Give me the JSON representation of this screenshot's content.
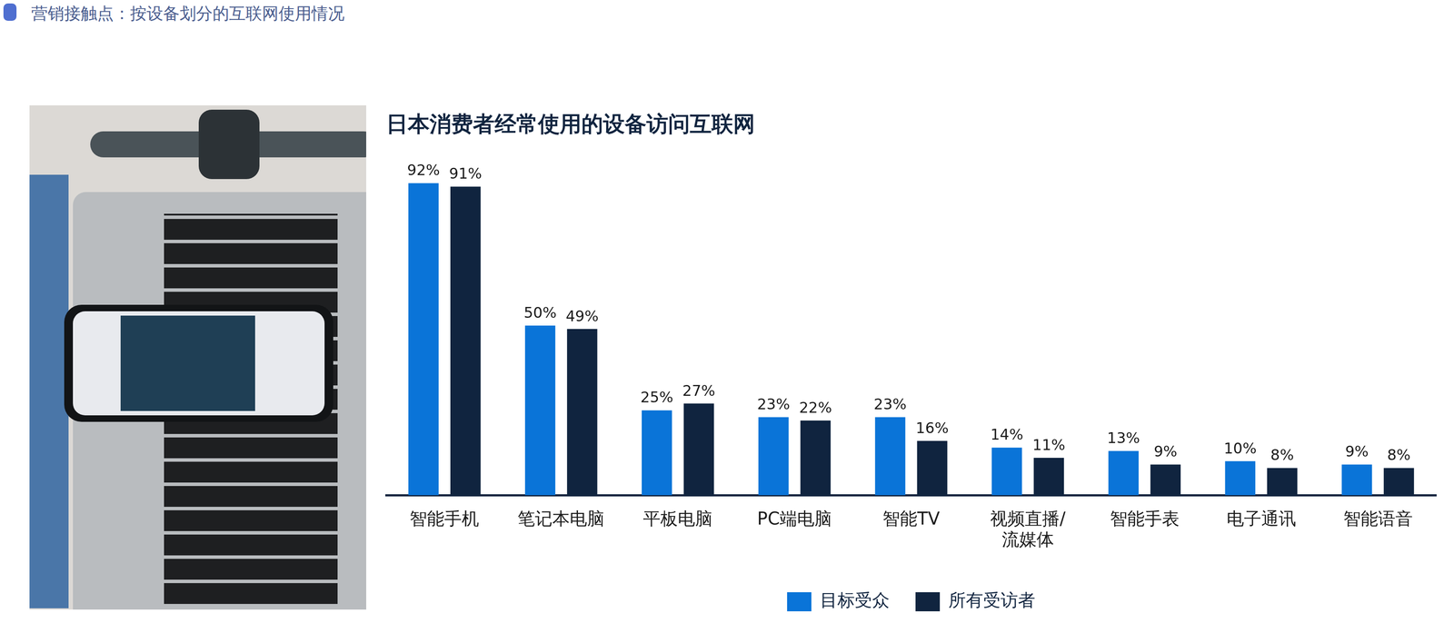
{
  "header": "营销接触点：按设备划分的互联网使用情况",
  "chart_data": {
    "type": "bar",
    "title": "日本消费者经常使用的设备访问互联网",
    "categories": [
      "智能手机",
      "笔记本电脑",
      "平板电脑",
      "PC端电脑",
      "智能TV",
      "视频直播/流媒体",
      "智能手表",
      "电子通讯",
      "智能语音"
    ],
    "series": [
      {
        "name": "目标受众",
        "color": "#0a74d8",
        "values": [
          92,
          50,
          25,
          23,
          23,
          14,
          13,
          10,
          9
        ],
        "value_labels": [
          "92%",
          "50%",
          "25%",
          "23%",
          "23%",
          "14%",
          "13%",
          "10%",
          "9%"
        ]
      },
      {
        "name": "所有受访者",
        "color": "#10243f",
        "values": [
          91,
          49,
          27,
          22,
          16,
          11,
          9,
          8,
          8
        ],
        "value_labels": [
          "91%",
          "49%",
          "27%",
          "22%",
          "16%",
          "11%",
          "9%",
          "8%",
          "8%"
        ]
      }
    ],
    "ylim": [
      0,
      100
    ],
    "yticks": [
      0,
      100
    ],
    "grid": false,
    "tick_labels": "x",
    "data_labels": true,
    "legend": "bottom"
  }
}
